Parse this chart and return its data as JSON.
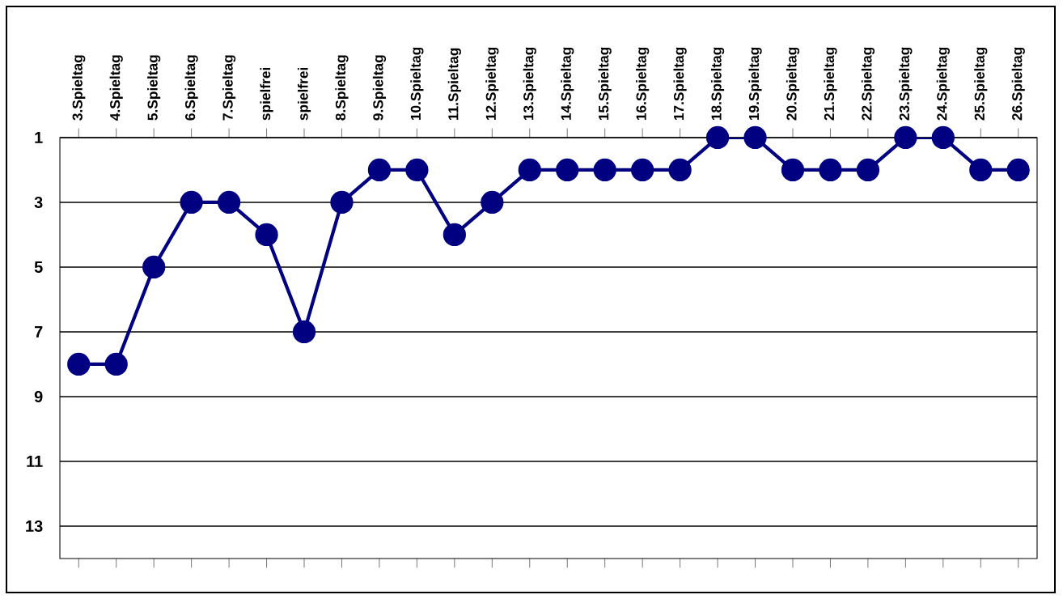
{
  "chart_data": {
    "type": "line",
    "categories": [
      "3.Spieltag",
      "4.Spieltag",
      "5.Spieltag",
      "6.Spieltag",
      "7.Spieltag",
      "spielfrei",
      "spielfrei",
      "8.Spieltag",
      "9.Spieltag",
      "10.Spieltag",
      "11.Spieltag",
      "12.Spieltag",
      "13.Spieltag",
      "14.Spieltag",
      "15.Spieltag",
      "16.Spieltag",
      "17.Spieltag",
      "18.Spieltag",
      "19.Spieltag",
      "20.Spieltag",
      "21.Spieltag",
      "22.Spieltag",
      "23.Spieltag",
      "24.Spieltag",
      "25.Spieltag",
      "26.Spieltag"
    ],
    "series": [
      {
        "color": "#000080",
        "values": [
          8,
          8,
          5,
          3,
          3,
          4,
          7,
          3,
          2,
          2,
          4,
          3,
          2,
          2,
          2,
          2,
          2,
          1,
          1,
          2,
          2,
          2,
          1,
          1,
          2,
          2
        ]
      }
    ],
    "ylim": [
      14,
      1
    ],
    "yticks": [
      1,
      3,
      5,
      7,
      9,
      11,
      13
    ],
    "grid": "y",
    "marker": "circle",
    "line_style": "solid"
  }
}
